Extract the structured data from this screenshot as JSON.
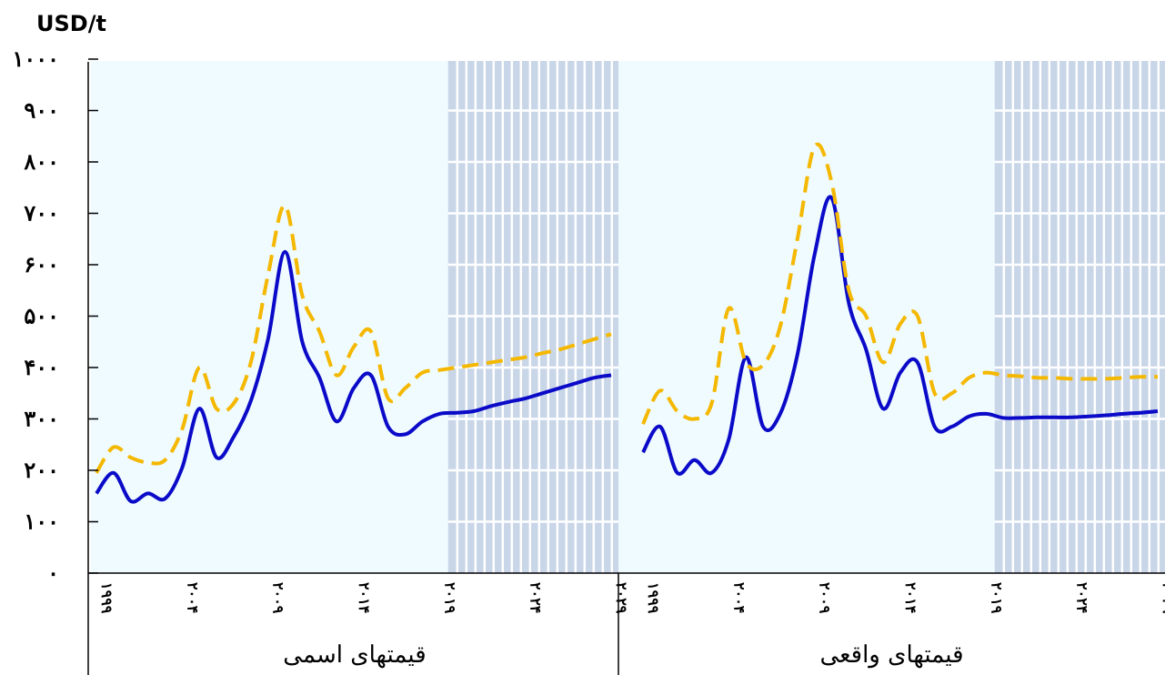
{
  "chart_data": {
    "type": "line",
    "unit_label": "USD/t",
    "ylim": [
      0,
      1000
    ],
    "y_ticks": [
      "۰",
      "۱۰۰",
      "۲۰۰",
      "۳۰۰",
      "۴۰۰",
      "۵۰۰",
      "۶۰۰",
      "۷۰۰",
      "۸۰۰",
      "۹۰۰",
      "۱۰۰۰"
    ],
    "x_tick_labels": [
      "۱۹۹۹",
      "۲۰۰۴",
      "۲۰۰۹",
      "۲۰۱۴",
      "۲۰۱۹",
      "۲۰۲۴",
      "۲۰۲۹"
    ],
    "colors": {
      "solid_series": "#0a0ac8",
      "dashed_series": "#f5b800",
      "history_bg": "#effbff",
      "forecast_bg": "#c8d6e8",
      "forecast_grid": "#ffffff"
    },
    "panels": [
      {
        "label": "قیمتهای اسمی",
        "forecast_start": 2019.5,
        "series": [
          {
            "style": "solid",
            "x": [
              1999,
              2000,
              2001,
              2002,
              2003,
              2004,
              2005,
              2006,
              2007,
              2008,
              2009,
              2010,
              2011,
              2012,
              2013,
              2014,
              2015,
              2016,
              2017,
              2018,
              2019,
              2020,
              2021,
              2022,
              2023,
              2024,
              2025,
              2026,
              2027,
              2028,
              2029
            ],
            "values": [
              155,
              195,
              140,
              155,
              145,
              205,
              320,
              225,
              265,
              335,
              455,
              625,
              450,
              380,
              295,
              360,
              385,
              285,
              270,
              295,
              310,
              312,
              315,
              325,
              333,
              340,
              350,
              360,
              370,
              380,
              385
            ]
          },
          {
            "style": "dashed",
            "x": [
              1999,
              2000,
              2001,
              2002,
              2003,
              2004,
              2005,
              2006,
              2007,
              2008,
              2009,
              2010,
              2011,
              2012,
              2013,
              2014,
              2015,
              2016,
              2017,
              2018,
              2019,
              2020,
              2021,
              2022,
              2023,
              2024,
              2025,
              2026,
              2027,
              2028,
              2029
            ],
            "values": [
              195,
              245,
              225,
              215,
              220,
              280,
              400,
              320,
              330,
              410,
              580,
              715,
              540,
              470,
              385,
              440,
              470,
              340,
              360,
              390,
              395,
              400,
              405,
              410,
              415,
              420,
              428,
              435,
              445,
              455,
              465
            ]
          }
        ]
      },
      {
        "label": "قیمتهای واقعی",
        "forecast_start": 2019.5,
        "series": [
          {
            "style": "solid",
            "x": [
              1999,
              2000,
              2001,
              2002,
              2003,
              2004,
              2005,
              2006,
              2007,
              2008,
              2009,
              2010,
              2011,
              2012,
              2013,
              2014,
              2015,
              2016,
              2017,
              2018,
              2019,
              2020,
              2021,
              2022,
              2023,
              2024,
              2025,
              2026,
              2027,
              2028,
              2029
            ],
            "values": [
              235,
              285,
              195,
              220,
              195,
              260,
              420,
              285,
              310,
              425,
              620,
              730,
              525,
              435,
              320,
              390,
              410,
              285,
              285,
              305,
              310,
              302,
              302,
              303,
              303,
              303,
              305,
              307,
              310,
              312,
              315
            ]
          },
          {
            "style": "dashed",
            "x": [
              1999,
              2000,
              2001,
              2002,
              2003,
              2004,
              2005,
              2006,
              2007,
              2008,
              2009,
              2010,
              2011,
              2012,
              2013,
              2014,
              2015,
              2016,
              2017,
              2018,
              2019,
              2020,
              2021,
              2022,
              2023,
              2024,
              2025,
              2026,
              2027,
              2028,
              2029
            ],
            "values": [
              290,
              355,
              315,
              300,
              330,
              515,
              410,
              405,
              480,
              650,
              830,
              760,
              550,
              500,
              410,
              485,
              500,
              350,
              350,
              380,
              390,
              385,
              383,
              380,
              380,
              378,
              378,
              378,
              380,
              382,
              382
            ]
          }
        ]
      }
    ]
  }
}
